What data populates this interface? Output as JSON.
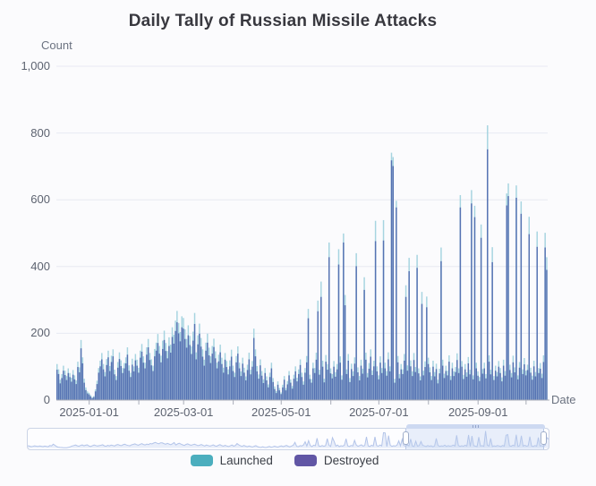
{
  "title": "Daily Tally of Russian Missile Attacks",
  "y_axis_name": "Count",
  "x_axis_name": "Date",
  "colors": {
    "launched_bar": "#a6d4e0",
    "destroyed_bar": "#5572b2",
    "launched_legend": "#4baebe",
    "destroyed_legend": "#6156a5",
    "grid_line": "#e8eaf2",
    "axis_line": "#a9adb8",
    "slider_line": "#b3c4e9"
  },
  "chart_data": {
    "type": "bar",
    "bar_mode": "overlay",
    "title": "Daily Tally of Russian Missile Attacks",
    "xlabel": "Date",
    "ylabel": "Count",
    "ylim": [
      0,
      1000
    ],
    "grid": true,
    "legend_position": "bottom",
    "start_date": "2024-12-12",
    "y_ticks": [
      {
        "label": "0",
        "value": 0
      },
      {
        "label": "200",
        "value": 200
      },
      {
        "label": "400",
        "value": 400
      },
      {
        "label": "600",
        "value": 600
      },
      {
        "label": "800",
        "value": 800
      },
      {
        "label": "1,000",
        "value": 1000
      }
    ],
    "x_tick_labels": [
      {
        "label": "2025-01-01",
        "day_index": 20
      },
      {
        "label": "2025-03-01",
        "day_index": 79
      },
      {
        "label": "2025-05-01",
        "day_index": 140
      },
      {
        "label": "2025-07-01",
        "day_index": 201
      },
      {
        "label": "2025-09-01",
        "day_index": 263
      }
    ],
    "month_tick_day_indices": [
      20,
      51,
      79,
      110,
      140,
      171,
      201,
      232,
      263,
      293
    ],
    "series": [
      {
        "name": "Launched",
        "color": "#a6d4e0",
        "legend_color": "#4baebe",
        "values": [
          108,
          92,
          61,
          78,
          103,
          88,
          72,
          95,
          81,
          67,
          90,
          74,
          59,
          115,
          98,
          180,
          128,
          64,
          38,
          26,
          22,
          15,
          9,
          12,
          32,
          58,
          96,
          118,
          141,
          108,
          84,
          123,
          148,
          102,
          133,
          152,
          91,
          72,
          114,
          143,
          119,
          96,
          111,
          128,
          158,
          104,
          82,
          124,
          101,
          138,
          121,
          97,
          148,
          168,
          131,
          112,
          158,
          183,
          141,
          122,
          103,
          153,
          172,
          198,
          162,
          133,
          178,
          208,
          171,
          147,
          188,
          166,
          218,
          196,
          238,
          267,
          231,
          204,
          251,
          246,
          212,
          183,
          224,
          192,
          161,
          205,
          261,
          143,
          194,
          229,
          186,
          152,
          121,
          172,
          199,
          157,
          131,
          162,
          184,
          146,
          112,
          136,
          166,
          127,
          97,
          141,
          117,
          92,
          119,
          151,
          103,
          82,
          132,
          161,
          112,
          86,
          127,
          97,
          71,
          106,
          142,
          91,
          117,
          214,
          152,
          102,
          77,
          122,
          87,
          62,
          96,
          71,
          47,
          82,
          112,
          66,
          41,
          27,
          56,
          36,
          23,
          46,
          72,
          36,
          57,
          87,
          62,
          42,
          76,
          101,
          67,
          92,
          122,
          82,
          56,
          96,
          132,
          273,
          76,
          63,
          112,
          96,
          142,
          298,
          91,
          355,
          118,
          64,
          135,
          108,
          472,
          95,
          78,
          117,
          84,
          108,
          452,
          131,
          74,
          499,
          315,
          92,
          138,
          66,
          109,
          86,
          128,
          440,
          98,
          72,
          121,
          94,
          368,
          142,
          81,
          111,
          152,
          89,
          118,
          537,
          101,
          74,
          131,
          96,
          539,
          112,
          87,
          143,
          101,
          741,
          728,
          64,
          597,
          132,
          78,
          108,
          92,
          138,
          344,
          104,
          426,
          119,
          86,
          141,
          99,
          435,
          95,
          71,
          324,
          88,
          116,
          310,
          127,
          98,
          72,
          118,
          84,
          109,
          61,
          94,
          457,
          121,
          79,
          103,
          88,
          134,
          72,
          112,
          86,
          99,
          140,
          95,
          614,
          117,
          76,
          108,
          83,
          129,
          91,
          629,
          74,
          582,
          112,
          86,
          69,
          526,
          93,
          112,
          78,
          823,
          134,
          91,
          458,
          72,
          103,
          84,
          117,
          96,
          68,
          121,
          87,
          619,
          649,
          106,
          81,
          133,
          98,
          643,
          74,
          114,
          595,
          92,
          126,
          88,
          106,
          549,
          97,
          73,
          118,
          84,
          505,
          96,
          111,
          79,
          134,
          501,
          428
        ]
      },
      {
        "name": "Destroyed",
        "color": "#5572b2",
        "legend_color": "#6156a5",
        "values": [
          91,
          78,
          50,
          66,
          88,
          75,
          60,
          81,
          69,
          55,
          76,
          62,
          48,
          99,
          83,
          155,
          110,
          52,
          30,
          20,
          17,
          11,
          6,
          9,
          26,
          48,
          82,
          101,
          122,
          92,
          71,
          105,
          128,
          87,
          114,
          131,
          77,
          60,
          97,
          123,
          102,
          81,
          95,
          110,
          136,
          88,
          69,
          106,
          86,
          119,
          103,
          82,
          127,
          145,
          112,
          95,
          136,
          158,
          120,
          104,
          87,
          131,
          148,
          171,
          139,
          113,
          153,
          180,
          147,
          125,
          162,
          142,
          189,
          169,
          207,
          233,
          200,
          176,
          218,
          214,
          183,
          157,
          194,
          165,
          138,
          178,
          228,
          122,
          167,
          199,
          160,
          130,
          103,
          148,
          172,
          134,
          111,
          139,
          159,
          125,
          95,
          116,
          143,
          108,
          82,
          121,
          99,
          77,
          101,
          130,
          87,
          69,
          113,
          139,
          95,
          72,
          109,
          82,
          59,
          90,
          122,
          77,
          100,
          186,
          131,
          86,
          64,
          104,
          73,
          51,
          81,
          59,
          38,
          69,
          95,
          54,
          33,
          21,
          46,
          29,
          18,
          38,
          61,
          29,
          47,
          74,
          52,
          34,
          64,
          86,
          56,
          78,
          105,
          69,
          46,
          82,
          113,
          245,
          63,
          52,
          95,
          81,
          121,
          266,
          76,
          309,
          100,
          53,
          115,
          91,
          428,
          80,
          65,
          100,
          70,
          92,
          406,
          112,
          61,
          472,
          284,
          78,
          118,
          54,
          93,
          72,
          109,
          401,
          83,
          59,
          103,
          79,
          330,
          121,
          68,
          94,
          130,
          75,
          101,
          476,
          86,
          62,
          112,
          81,
          478,
          95,
          73,
          122,
          86,
          718,
          701,
          52,
          577,
          113,
          65,
          92,
          78,
          118,
          309,
          88,
          386,
          101,
          72,
          120,
          84,
          396,
          80,
          59,
          288,
          74,
          99,
          278,
          108,
          83,
          60,
          100,
          71,
          93,
          50,
          80,
          416,
          103,
          66,
          87,
          74,
          115,
          60,
          95,
          72,
          84,
          120,
          81,
          577,
          100,
          63,
          92,
          70,
          110,
          77,
          589,
          62,
          548,
          95,
          73,
          57,
          486,
          79,
          95,
          65,
          751,
          115,
          77,
          413,
          60,
          88,
          71,
          100,
          81,
          56,
          103,
          73,
          583,
          611,
          90,
          68,
          113,
          83,
          606,
          62,
          97,
          558,
          78,
          107,
          74,
          90,
          497,
          82,
          61,
          101,
          71,
          459,
          81,
          94,
          66,
          114,
          457,
          390
        ]
      }
    ]
  },
  "range_slider": {
    "selection_start_frac": 0.725,
    "selection_end_frac": 0.991
  }
}
